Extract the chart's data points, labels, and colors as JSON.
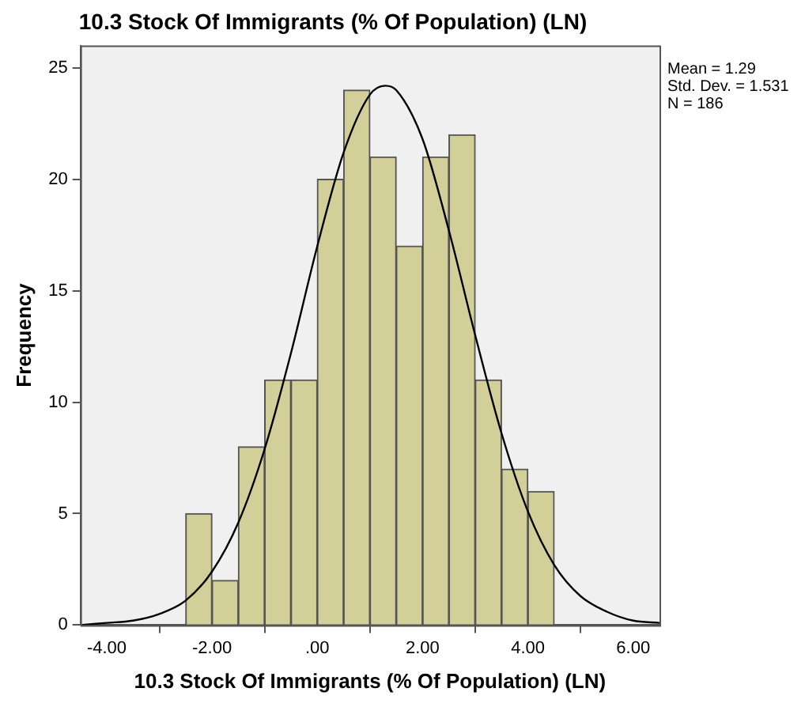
{
  "chart_data": {
    "type": "histogram",
    "title": "10.3 Stock Of Immigrants (% Of Population) (LN)",
    "xlabel": "10.3 Stock Of Immigrants (% Of Population) (LN)",
    "ylabel": "Frequency",
    "series": [
      {
        "color": "#d3cf98",
        "bins": [
          -2.5,
          -2,
          -1.5,
          -1,
          -0.5,
          0,
          0.5,
          1,
          1.5,
          2,
          2.5,
          3,
          3.5,
          4,
          4.5
        ],
        "values": [
          5,
          2,
          8,
          11,
          11,
          20,
          24,
          21,
          17,
          21,
          22,
          11,
          7,
          6
        ]
      },
      {
        "type": "line",
        "color": "#000000",
        "x": [
          -4.5,
          -4,
          -3.5,
          -3,
          -2.5,
          -2,
          -1.5,
          -1,
          -0.5,
          0,
          0.5,
          1,
          1.29,
          1.5,
          2,
          2.5,
          3,
          3.5,
          4,
          4.5,
          5,
          5.5,
          6,
          6.5
        ],
        "values": [
          0.0,
          0.1,
          0.2,
          0.5,
          1.1,
          2.4,
          4.6,
          7.9,
          12.2,
          17.0,
          21.2,
          23.8,
          24.2,
          24.0,
          21.8,
          17.7,
          13.0,
          8.6,
          5.1,
          2.7,
          1.3,
          0.6,
          0.2,
          0.1
        ]
      }
    ],
    "xlim": [
      -4.5,
      6.5
    ],
    "xticks": [
      {
        "value": -4,
        "label": "-4.00"
      },
      {
        "value": -2,
        "label": "-2.00"
      },
      {
        "value": 0,
        "label": ".00"
      },
      {
        "value": 2,
        "label": "2.00"
      },
      {
        "value": 4,
        "label": "4.00"
      },
      {
        "value": 6,
        "label": "6.00"
      }
    ],
    "ylim": [
      0,
      26
    ],
    "yticks": [
      0,
      5,
      10,
      15,
      20,
      25
    ],
    "annotations": [
      "Mean = 1.29",
      "Std. Dev. = 1.531",
      "N = 186"
    ],
    "grid": false,
    "legend": false,
    "marker": "none",
    "line_style": "solid"
  }
}
